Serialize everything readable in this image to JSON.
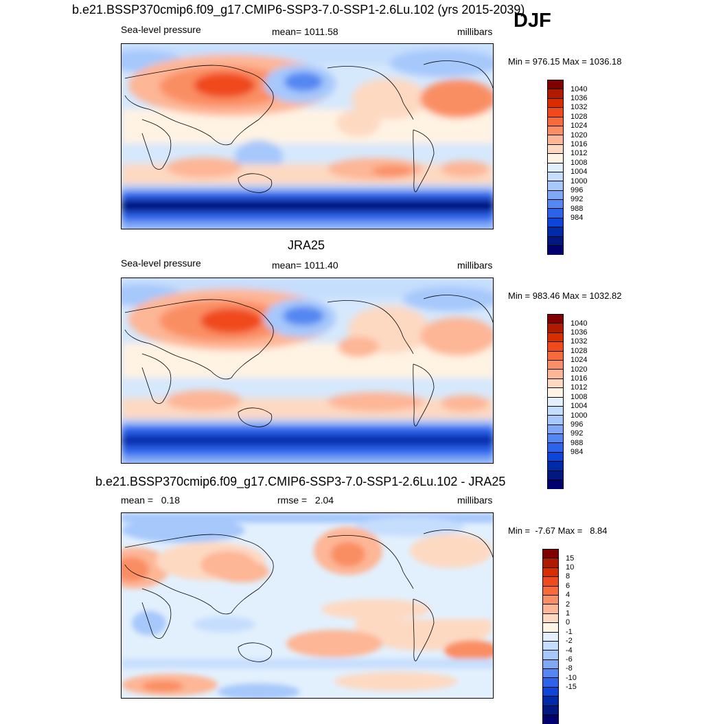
{
  "figure": {
    "title": "b.e21.BSSP370cmip6.f09_g17.CMIP6-SSP3-7.0-SSP1-2.6Lu.102 (yrs 2015-2039)",
    "season": "DJF"
  },
  "panels": [
    {
      "id": "model",
      "subtitle": "",
      "left_label": "Sea-level pressure",
      "center_label": "mean= 1011.58",
      "right_label": "millibars",
      "minmax": "Min = 976.15 Max = 1036.18",
      "colorbar": {
        "colors": [
          "#800000",
          "#b01b00",
          "#d92d00",
          "#f0491e",
          "#f66a3c",
          "#fa8e64",
          "#fdb696",
          "#fdd9c2",
          "#fff3e3",
          "#e2f0fd",
          "#c6defd",
          "#a6c8fb",
          "#7fa9f6",
          "#5487f2",
          "#2b63eb",
          "#0c45d9",
          "#002ba8",
          "#001880",
          "#00006e"
        ],
        "labels": [
          "1040",
          "1036",
          "1032",
          "1028",
          "1024",
          "1020",
          "1016",
          "1012",
          "1008",
          "1004",
          "1000",
          "996",
          "992",
          "988",
          "984"
        ]
      }
    },
    {
      "id": "obs",
      "subtitle": "JRA25",
      "left_label": "Sea-level pressure",
      "center_label": "mean= 1011.40",
      "right_label": "millibars",
      "minmax": "Min = 983.46 Max = 1032.82",
      "colorbar": {
        "colors": [
          "#800000",
          "#b01b00",
          "#d92d00",
          "#f0491e",
          "#f66a3c",
          "#fa8e64",
          "#fdb696",
          "#fdd9c2",
          "#fff3e3",
          "#e2f0fd",
          "#c6defd",
          "#a6c8fb",
          "#7fa9f6",
          "#5487f2",
          "#2b63eb",
          "#0c45d9",
          "#002ba8",
          "#001880",
          "#00006e"
        ],
        "labels": [
          "1040",
          "1036",
          "1032",
          "1028",
          "1024",
          "1020",
          "1016",
          "1012",
          "1008",
          "1004",
          "1000",
          "996",
          "992",
          "988",
          "984"
        ]
      }
    },
    {
      "id": "diff",
      "subtitle": "b.e21.BSSP370cmip6.f09_g17.CMIP6-SSP3-7.0-SSP1-2.6Lu.102 - JRA25",
      "left_label": "mean =   0.18",
      "center_label": "rmse =   2.04",
      "right_label": "millibars",
      "minmax": "Min =  -7.67 Max =   8.84",
      "colorbar": {
        "colors": [
          "#800000",
          "#b01b00",
          "#d92d00",
          "#f0491e",
          "#f66a3c",
          "#fa8e64",
          "#fdb696",
          "#fdd9c2",
          "#fff3e3",
          "#e2f0fd",
          "#c6defd",
          "#a6c8fb",
          "#7fa9f6",
          "#5487f2",
          "#2b63eb",
          "#0c45d9",
          "#002ba8",
          "#001880",
          "#00006e"
        ],
        "labels": [
          "15",
          "10",
          "8",
          "6",
          "4",
          "2",
          "1",
          "0",
          "-1",
          "-2",
          "-4",
          "-6",
          "-8",
          "-10",
          "-15"
        ]
      }
    }
  ]
}
